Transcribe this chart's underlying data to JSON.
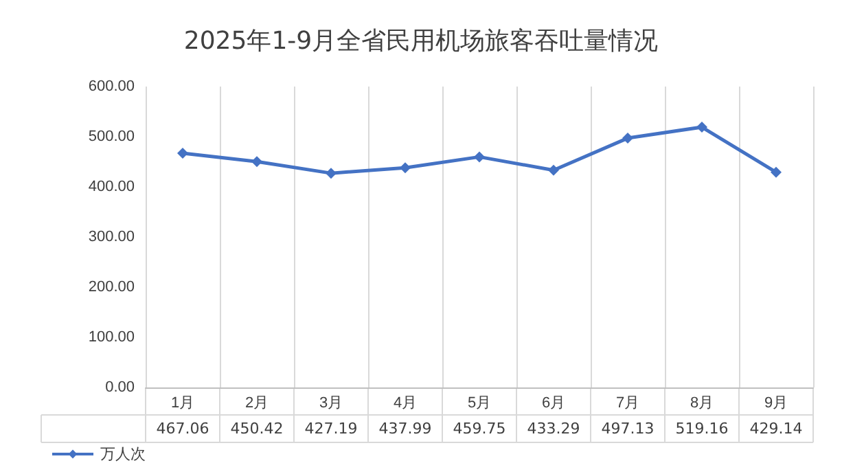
{
  "chart_data": {
    "type": "line",
    "title": "2025年1-9月全省民用机场旅客吞吐量情况",
    "categories": [
      "1月",
      "2月",
      "3月",
      "4月",
      "5月",
      "6月",
      "7月",
      "8月",
      "9月"
    ],
    "series": [
      {
        "name": "万人次",
        "color": "#4472c4",
        "values": [
          467.06,
          450.42,
          427.19,
          437.99,
          459.75,
          433.29,
          497.13,
          519.16,
          429.14
        ]
      }
    ],
    "ylim": [
      0,
      600
    ],
    "yticks": [
      {
        "value": 0,
        "label": "0.00"
      },
      {
        "value": 100,
        "label": "100.00"
      },
      {
        "value": 200,
        "label": "200.00"
      },
      {
        "value": 300,
        "label": "300.00"
      },
      {
        "value": 400,
        "label": "400.00"
      },
      {
        "value": 500,
        "label": "500.00"
      },
      {
        "value": 600,
        "label": "600.00"
      }
    ],
    "grid": "x",
    "legend": "bottom left",
    "marker": "diamond",
    "line_style": "solid",
    "data_labels": true
  }
}
